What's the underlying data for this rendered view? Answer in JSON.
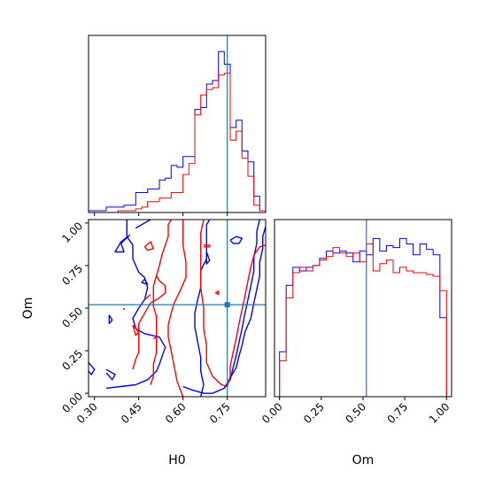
{
  "colors": {
    "blue": "#0000ff",
    "red": "#ff0000",
    "truth": "#1f77b4"
  },
  "chart_data": [
    {
      "type": "step-histogram",
      "panel": "H0 marginal",
      "xlim": [
        0.28,
        0.88
      ],
      "truth_x": 0.75,
      "bin_edges": [
        0.28,
        0.3,
        0.32,
        0.34,
        0.36,
        0.38,
        0.4,
        0.42,
        0.44,
        0.46,
        0.48,
        0.5,
        0.52,
        0.54,
        0.56,
        0.58,
        0.6,
        0.62,
        0.64,
        0.66,
        0.68,
        0.7,
        0.72,
        0.74,
        0.76,
        0.78,
        0.8,
        0.82,
        0.84,
        0.86,
        0.88
      ],
      "series": [
        {
          "color": "blue",
          "counts": [
            1,
            1,
            1,
            3,
            3,
            3,
            4,
            4,
            11,
            11,
            13,
            13,
            18,
            19,
            26,
            25,
            31,
            31,
            57,
            58,
            71,
            73,
            89,
            82,
            47,
            51,
            34,
            28,
            9,
            1
          ]
        },
        {
          "color": "red",
          "counts": [
            0,
            0,
            0,
            0,
            0,
            1,
            1,
            1,
            2,
            3,
            6,
            6,
            8,
            8,
            11,
            11,
            21,
            27,
            54,
            65,
            68,
            69,
            76,
            77,
            40,
            45,
            30,
            20,
            4,
            1
          ]
        }
      ]
    },
    {
      "type": "contour",
      "panel": "H0 vs Om",
      "xlabel": "H0",
      "ylabel": "Om",
      "xlim": [
        0.28,
        0.88
      ],
      "ylim": [
        -0.02,
        1.02
      ],
      "xticks": [
        "0.30",
        "0.45",
        "0.60",
        "0.75"
      ],
      "xtick_values": [
        0.3,
        0.45,
        0.6,
        0.75
      ],
      "yticks": [
        "0.00",
        "0.25",
        "0.50",
        "0.75",
        "1.00"
      ],
      "ytick_values": [
        0.0,
        0.25,
        0.5,
        0.75,
        1.0
      ],
      "truth": [
        0.75,
        0.52
      ],
      "series": [
        {
          "color": "blue",
          "contours": [
            [
              [
                0.41,
                1.02
              ],
              [
                0.41,
                0.92
              ],
              [
                0.43,
                0.87
              ],
              [
                0.43,
                0.79
              ],
              [
                0.45,
                0.71
              ],
              [
                0.47,
                0.68
              ],
              [
                0.48,
                0.62
              ],
              [
                0.47,
                0.55
              ],
              [
                0.45,
                0.5
              ],
              [
                0.43,
                0.44
              ],
              [
                0.44,
                0.38
              ],
              [
                0.47,
                0.35
              ],
              [
                0.52,
                0.33
              ],
              [
                0.54,
                0.27
              ],
              [
                0.53,
                0.22
              ],
              [
                0.52,
                0.17
              ],
              [
                0.51,
                0.13
              ],
              [
                0.48,
                0.08
              ],
              [
                0.44,
                0.05
              ],
              [
                0.39,
                0.04
              ],
              [
                0.34,
                0.03
              ]
            ],
            [
              [
                0.44,
                0.97
              ],
              [
                0.49,
                1.02
              ]
            ],
            [
              [
                0.66,
                -0.02
              ],
              [
                0.67,
                0.05
              ],
              [
                0.66,
                0.13
              ],
              [
                0.66,
                0.21
              ],
              [
                0.65,
                0.3
              ],
              [
                0.64,
                0.39
              ],
              [
                0.64,
                0.47
              ],
              [
                0.65,
                0.55
              ],
              [
                0.66,
                0.62
              ],
              [
                0.66,
                0.72
              ],
              [
                0.68,
                0.79
              ],
              [
                0.68,
                0.9
              ],
              [
                0.68,
                0.99
              ],
              [
                0.69,
                1.02
              ]
            ],
            [
              [
                0.6,
                0.04
              ],
              [
                0.63,
                0.02
              ],
              [
                0.67,
                0.0
              ],
              [
                0.7,
                0.0
              ],
              [
                0.74,
                0.03
              ],
              [
                0.76,
                0.09
              ],
              [
                0.78,
                0.15
              ],
              [
                0.79,
                0.22
              ],
              [
                0.8,
                0.28
              ],
              [
                0.81,
                0.36
              ],
              [
                0.83,
                0.44
              ],
              [
                0.84,
                0.53
              ],
              [
                0.85,
                0.61
              ],
              [
                0.86,
                0.69
              ],
              [
                0.86,
                0.77
              ],
              [
                0.87,
                0.85
              ],
              [
                0.87,
                0.92
              ],
              [
                0.88,
                0.98
              ]
            ],
            [
              [
                0.74,
                0.03
              ],
              [
                0.76,
                0.08
              ],
              [
                0.77,
                0.15
              ],
              [
                0.78,
                0.22
              ],
              [
                0.79,
                0.3
              ],
              [
                0.8,
                0.38
              ],
              [
                0.81,
                0.47
              ],
              [
                0.82,
                0.55
              ],
              [
                0.83,
                0.63
              ],
              [
                0.84,
                0.72
              ],
              [
                0.84,
                0.8
              ],
              [
                0.85,
                0.88
              ],
              [
                0.85,
                0.95
              ],
              [
                0.86,
                1.02
              ]
            ],
            [
              [
                0.76,
                0.9
              ],
              [
                0.78,
                0.92
              ],
              [
                0.8,
                0.91
              ],
              [
                0.79,
                0.88
              ],
              [
                0.77,
                0.88
              ],
              [
                0.76,
                0.9
              ]
            ],
            [
              [
                0.42,
                0.93
              ],
              [
                0.39,
                0.88
              ],
              [
                0.4,
                0.83
              ],
              [
                0.37,
                0.83
              ],
              [
                0.39,
                0.89
              ],
              [
                0.42,
                0.93
              ]
            ],
            [
              [
                0.68,
                0.83
              ],
              [
                0.69,
                0.78
              ],
              [
                0.68,
                0.76
              ],
              [
                0.68,
                0.8
              ],
              [
                0.68,
                0.83
              ]
            ],
            [
              [
                0.47,
                0.67
              ],
              [
                0.48,
                0.64
              ],
              [
                0.46,
                0.65
              ],
              [
                0.47,
                0.67
              ]
            ],
            [
              [
                0.28,
                0.18
              ],
              [
                0.3,
                0.14
              ],
              [
                0.29,
                0.11
              ],
              [
                0.28,
                0.13
              ]
            ],
            [
              [
                0.34,
                0.14
              ],
              [
                0.37,
                0.11
              ],
              [
                0.36,
                0.08
              ],
              [
                0.34,
                0.12
              ]
            ],
            [
              [
                0.35,
                0.46
              ],
              [
                0.36,
                0.43
              ],
              [
                0.35,
                0.41
              ],
              [
                0.35,
                0.46
              ]
            ],
            [
              [
                0.4,
                0.5
              ],
              [
                0.4,
                0.49
              ]
            ]
          ]
        },
        {
          "color": "red",
          "contours": [
            [
              [
                0.6,
                -0.02
              ],
              [
                0.58,
                0.07
              ],
              [
                0.57,
                0.16
              ],
              [
                0.56,
                0.25
              ],
              [
                0.55,
                0.33
              ],
              [
                0.55,
                0.4
              ],
              [
                0.56,
                0.47
              ],
              [
                0.57,
                0.53
              ],
              [
                0.59,
                0.6
              ],
              [
                0.61,
                0.68
              ],
              [
                0.61,
                0.77
              ],
              [
                0.6,
                0.87
              ],
              [
                0.6,
                0.95
              ],
              [
                0.6,
                1.02
              ]
            ],
            [
              [
                0.67,
                1.02
              ],
              [
                0.66,
                0.94
              ],
              [
                0.66,
                0.84
              ],
              [
                0.66,
                0.73
              ],
              [
                0.66,
                0.62
              ],
              [
                0.67,
                0.5
              ],
              [
                0.67,
                0.38
              ],
              [
                0.68,
                0.28
              ],
              [
                0.68,
                0.18
              ],
              [
                0.7,
                0.1
              ],
              [
                0.73,
                0.05
              ],
              [
                0.75,
                0.04
              ],
              [
                0.76,
                0.1
              ],
              [
                0.76,
                0.16
              ],
              [
                0.77,
                0.24
              ],
              [
                0.78,
                0.32
              ],
              [
                0.79,
                0.41
              ],
              [
                0.8,
                0.49
              ],
              [
                0.81,
                0.57
              ],
              [
                0.82,
                0.66
              ],
              [
                0.83,
                0.74
              ],
              [
                0.84,
                0.81
              ],
              [
                0.86,
                0.86
              ],
              [
                0.88,
                0.87
              ]
            ],
            [
              [
                0.49,
                0.05
              ],
              [
                0.5,
                0.1
              ],
              [
                0.5,
                0.17
              ],
              [
                0.51,
                0.24
              ],
              [
                0.51,
                0.3
              ],
              [
                0.51,
                0.38
              ],
              [
                0.51,
                0.45
              ],
              [
                0.5,
                0.51
              ],
              [
                0.5,
                0.57
              ],
              [
                0.5,
                0.63
              ],
              [
                0.51,
                0.69
              ],
              [
                0.52,
                0.75
              ],
              [
                0.53,
                0.82
              ],
              [
                0.54,
                0.87
              ],
              [
                0.55,
                0.92
              ],
              [
                0.55,
                0.99
              ],
              [
                0.56,
                1.02
              ]
            ],
            [
              [
                0.43,
                0.14
              ],
              [
                0.44,
                0.2
              ],
              [
                0.45,
                0.24
              ],
              [
                0.45,
                0.33
              ],
              [
                0.45,
                0.41
              ],
              [
                0.47,
                0.47
              ],
              [
                0.49,
                0.53
              ],
              [
                0.52,
                0.56
              ],
              [
                0.54,
                0.59
              ],
              [
                0.54,
                0.63
              ],
              [
                0.52,
                0.66
              ],
              [
                0.51,
                0.69
              ]
            ],
            [
              [
                0.5,
                0.32
              ],
              [
                0.51,
                0.33
              ]
            ],
            [
              [
                0.47,
                0.86
              ],
              [
                0.49,
                0.89
              ],
              [
                0.5,
                0.85
              ],
              [
                0.48,
                0.84
              ],
              [
                0.47,
                0.86
              ]
            ],
            [
              [
                0.67,
                0.87
              ],
              [
                0.69,
                0.87
              ],
              [
                0.69,
                0.86
              ],
              [
                0.67,
                0.86
              ]
            ],
            [
              [
                0.71,
                0.59
              ],
              [
                0.72,
                0.6
              ],
              [
                0.72,
                0.58
              ],
              [
                0.71,
                0.59
              ]
            ],
            [
              [
                0.47,
                0.55
              ],
              [
                0.49,
                0.58
              ]
            ],
            [
              [
                0.43,
                0.4
              ],
              [
                0.45,
                0.36
              ],
              [
                0.44,
                0.34
              ],
              [
                0.43,
                0.4
              ]
            ]
          ]
        }
      ]
    },
    {
      "type": "step-histogram",
      "panel": "Om marginal",
      "xlim": [
        -0.03,
        1.03
      ],
      "truth_x": 0.52,
      "xlabel": "Om",
      "xticks": [
        "0.00",
        "0.25",
        "0.50",
        "0.75",
        "1.00"
      ],
      "xtick_values": [
        0.0,
        0.25,
        0.5,
        0.75,
        1.0
      ],
      "bin_edges": [
        0.0,
        0.04,
        0.08,
        0.12,
        0.16,
        0.2,
        0.24,
        0.28,
        0.32,
        0.36,
        0.4,
        0.44,
        0.48,
        0.52,
        0.56,
        0.6,
        0.64,
        0.68,
        0.72,
        0.76,
        0.8,
        0.84,
        0.88,
        0.92,
        0.96,
        1.0
      ],
      "series": [
        {
          "color": "blue",
          "counts": [
            25,
            62,
            72,
            70,
            72,
            73,
            77,
            81,
            80,
            81,
            80,
            75,
            81,
            79,
            88,
            81,
            84,
            83,
            88,
            85,
            79,
            85,
            82,
            79,
            44
          ]
        },
        {
          "color": "red",
          "counts": [
            20,
            55,
            69,
            72,
            70,
            73,
            76,
            78,
            83,
            80,
            78,
            80,
            75,
            85,
            70,
            74,
            76,
            69,
            72,
            70,
            69,
            69,
            68,
            67,
            59
          ]
        }
      ]
    }
  ]
}
